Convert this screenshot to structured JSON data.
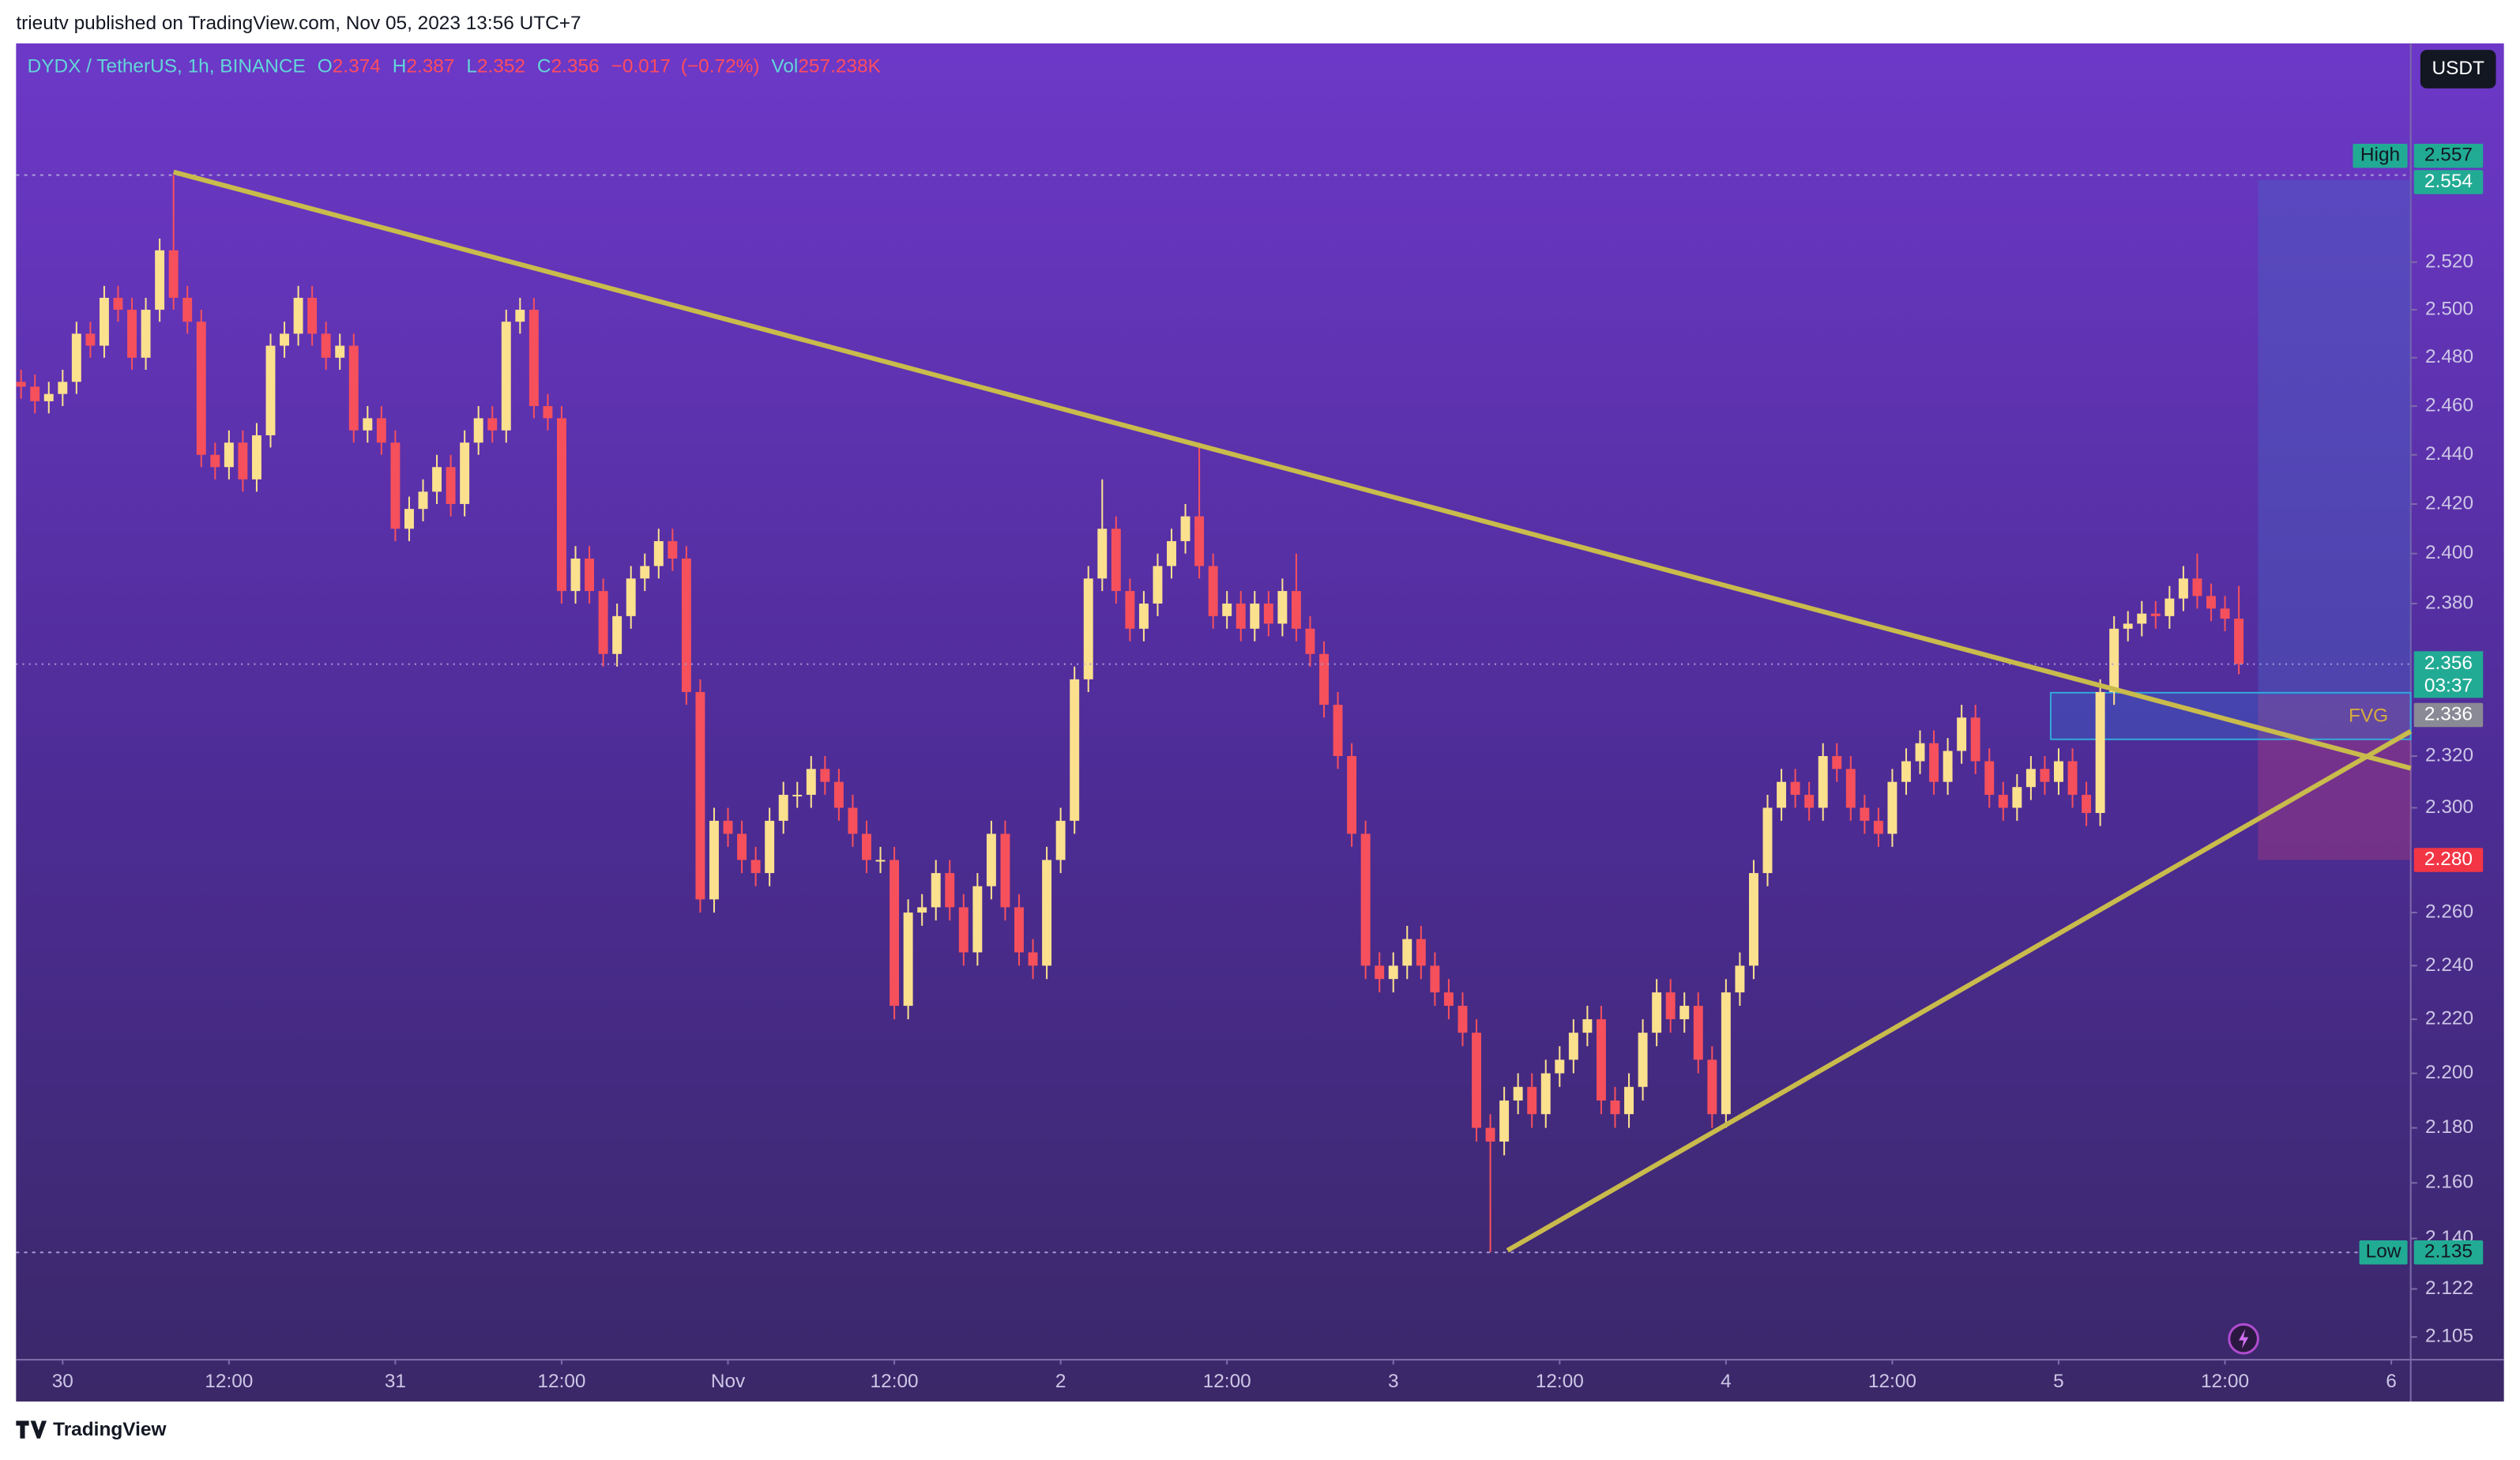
{
  "header": {
    "attribution": "trieutv published on TradingView.com, Nov 05, 2023 13:56 UTC+7"
  },
  "footer": {
    "brand": "TradingView"
  },
  "chart_data": {
    "type": "candlestick",
    "title": "DYDX / TetherUS, 1h, BINANCE",
    "ohlc_legend": {
      "open_prefix": "O",
      "open": 2.374,
      "high_prefix": "H",
      "high": 2.387,
      "low_prefix": "L",
      "low": 2.352,
      "close_prefix": "C",
      "close": 2.356,
      "change": {
        "value": -0.017,
        "label": "−0.017"
      },
      "change_percent": {
        "value": -0.72,
        "label": "(−0.72%)"
      },
      "volume_prefix": "Vol",
      "volume": {
        "value": 257238,
        "label": "257.238K"
      }
    },
    "currency": "USDT",
    "log_scale": true,
    "up_color": "#fbe08e",
    "down_color": "#f5505c",
    "x": [
      -3,
      -2,
      -1,
      0,
      1,
      2,
      3,
      4,
      5,
      6,
      7,
      8,
      9,
      10,
      11,
      12,
      13,
      14,
      15,
      16,
      17,
      18,
      19,
      20,
      21,
      22,
      23,
      24,
      25,
      26,
      27,
      28,
      29,
      30,
      31,
      32,
      33,
      34,
      35,
      36,
      37,
      38,
      39,
      40,
      41,
      42,
      43,
      44,
      45,
      46,
      47,
      48,
      49,
      50,
      51,
      52,
      53,
      54,
      55,
      56,
      57,
      58,
      59,
      60,
      61,
      62,
      63,
      64,
      65,
      66,
      67,
      68,
      69,
      70,
      71,
      72,
      73,
      74,
      75,
      76,
      77,
      78,
      79,
      80,
      81,
      82,
      83,
      84,
      85,
      86,
      87,
      88,
      89,
      90,
      91,
      92,
      93,
      94,
      95,
      96,
      97,
      98,
      99,
      100,
      101,
      102,
      103,
      104,
      105,
      106,
      107,
      108,
      109,
      110,
      111,
      112,
      113,
      114,
      115,
      116,
      117,
      118,
      119,
      120,
      121,
      122,
      123,
      124,
      125,
      126,
      127,
      128,
      129,
      130,
      131,
      132,
      133,
      134,
      135,
      136,
      137,
      138,
      139,
      140,
      141,
      142,
      143,
      144,
      145,
      146,
      147,
      148,
      149,
      150,
      151,
      152,
      153,
      154,
      155,
      156,
      157
    ],
    "open": [
      2.47,
      2.468,
      2.462,
      2.465,
      2.47,
      2.49,
      2.485,
      2.505,
      2.5,
      2.48,
      2.5,
      2.525,
      2.505,
      2.495,
      2.44,
      2.435,
      2.445,
      2.43,
      2.448,
      2.485,
      2.49,
      2.505,
      2.49,
      2.48,
      2.485,
      2.45,
      2.455,
      2.445,
      2.41,
      2.418,
      2.425,
      2.435,
      2.42,
      2.445,
      2.455,
      2.45,
      2.495,
      2.5,
      2.46,
      2.455,
      2.385,
      2.398,
      2.385,
      2.36,
      2.375,
      2.39,
      2.395,
      2.405,
      2.398,
      2.345,
      2.265,
      2.295,
      2.29,
      2.28,
      2.275,
      2.295,
      2.305,
      2.305,
      2.315,
      2.31,
      2.3,
      2.29,
      2.28,
      2.28,
      2.225,
      2.26,
      2.262,
      2.275,
      2.262,
      2.245,
      2.27,
      2.29,
      2.262,
      2.245,
      2.24,
      2.28,
      2.295,
      2.35,
      2.39,
      2.41,
      2.385,
      2.37,
      2.38,
      2.395,
      2.405,
      2.415,
      2.395,
      2.375,
      2.38,
      2.37,
      2.38,
      2.372,
      2.385,
      2.37,
      2.36,
      2.34,
      2.32,
      2.29,
      2.24,
      2.235,
      2.24,
      2.25,
      2.24,
      2.23,
      2.225,
      2.215,
      2.18,
      2.175,
      2.19,
      2.195,
      2.185,
      2.2,
      2.205,
      2.215,
      2.22,
      2.19,
      2.185,
      2.195,
      2.215,
      2.23,
      2.22,
      2.225,
      2.205,
      2.185,
      2.23,
      2.24,
      2.275,
      2.3,
      2.31,
      2.305,
      2.3,
      2.32,
      2.315,
      2.3,
      2.295,
      2.29,
      2.31,
      2.318,
      2.325,
      2.31,
      2.322,
      2.335,
      2.318,
      2.305,
      2.3,
      2.308,
      2.315,
      2.31,
      2.318,
      2.305,
      2.298,
      2.345,
      2.37,
      2.372,
      2.376,
      2.375,
      2.382,
      2.39,
      2.383,
      2.378,
      2.374
    ],
    "high": [
      2.475,
      2.473,
      2.47,
      2.475,
      2.495,
      2.495,
      2.51,
      2.51,
      2.505,
      2.505,
      2.53,
      2.557,
      2.51,
      2.5,
      2.445,
      2.45,
      2.45,
      2.453,
      2.49,
      2.495,
      2.51,
      2.51,
      2.495,
      2.49,
      2.49,
      2.46,
      2.46,
      2.45,
      2.423,
      2.43,
      2.44,
      2.44,
      2.45,
      2.46,
      2.46,
      2.5,
      2.505,
      2.505,
      2.465,
      2.46,
      2.403,
      2.403,
      2.39,
      2.38,
      2.395,
      2.4,
      2.41,
      2.41,
      2.403,
      2.35,
      2.3,
      2.3,
      2.295,
      2.285,
      2.3,
      2.31,
      2.31,
      2.32,
      2.32,
      2.315,
      2.305,
      2.295,
      2.285,
      2.285,
      2.265,
      2.267,
      2.28,
      2.28,
      2.267,
      2.275,
      2.295,
      2.295,
      2.267,
      2.25,
      2.285,
      2.3,
      2.355,
      2.395,
      2.43,
      2.415,
      2.39,
      2.385,
      2.4,
      2.41,
      2.42,
      2.445,
      2.4,
      2.385,
      2.385,
      2.385,
      2.385,
      2.39,
      2.4,
      2.375,
      2.365,
      2.345,
      2.325,
      2.295,
      2.245,
      2.245,
      2.255,
      2.255,
      2.245,
      2.235,
      2.23,
      2.22,
      2.185,
      2.195,
      2.2,
      2.2,
      2.205,
      2.21,
      2.22,
      2.225,
      2.225,
      2.195,
      2.2,
      2.22,
      2.235,
      2.235,
      2.23,
      2.23,
      2.21,
      2.235,
      2.245,
      2.28,
      2.305,
      2.315,
      2.315,
      2.31,
      2.325,
      2.325,
      2.32,
      2.305,
      2.3,
      2.315,
      2.323,
      2.33,
      2.33,
      2.327,
      2.34,
      2.34,
      2.323,
      2.31,
      2.313,
      2.32,
      2.32,
      2.323,
      2.323,
      2.31,
      2.35,
      2.375,
      2.377,
      2.381,
      2.381,
      2.387,
      2.395,
      2.4,
      2.388,
      2.383,
      2.387
    ],
    "low": [
      2.463,
      2.457,
      2.457,
      2.46,
      2.465,
      2.48,
      2.48,
      2.495,
      2.475,
      2.475,
      2.495,
      2.5,
      2.49,
      2.435,
      2.43,
      2.43,
      2.425,
      2.425,
      2.443,
      2.48,
      2.485,
      2.485,
      2.475,
      2.475,
      2.445,
      2.445,
      2.44,
      2.405,
      2.405,
      2.413,
      2.42,
      2.415,
      2.415,
      2.44,
      2.445,
      2.445,
      2.49,
      2.455,
      2.45,
      2.38,
      2.38,
      2.38,
      2.355,
      2.355,
      2.37,
      2.385,
      2.39,
      2.393,
      2.34,
      2.26,
      2.26,
      2.285,
      2.275,
      2.27,
      2.27,
      2.29,
      2.3,
      2.3,
      2.305,
      2.295,
      2.285,
      2.275,
      2.275,
      2.22,
      2.22,
      2.255,
      2.257,
      2.257,
      2.24,
      2.24,
      2.265,
      2.257,
      2.24,
      2.235,
      2.235,
      2.275,
      2.29,
      2.345,
      2.385,
      2.38,
      2.365,
      2.365,
      2.375,
      2.39,
      2.4,
      2.39,
      2.37,
      2.37,
      2.365,
      2.365,
      2.367,
      2.367,
      2.365,
      2.355,
      2.335,
      2.315,
      2.285,
      2.235,
      2.23,
      2.23,
      2.235,
      2.235,
      2.225,
      2.22,
      2.21,
      2.175,
      2.135,
      2.17,
      2.185,
      2.18,
      2.18,
      2.195,
      2.2,
      2.21,
      2.185,
      2.18,
      2.18,
      2.19,
      2.21,
      2.215,
      2.215,
      2.2,
      2.18,
      2.18,
      2.225,
      2.235,
      2.27,
      2.295,
      2.3,
      2.295,
      2.295,
      2.31,
      2.295,
      2.29,
      2.285,
      2.285,
      2.305,
      2.313,
      2.305,
      2.305,
      2.317,
      2.313,
      2.3,
      2.295,
      2.295,
      2.303,
      2.305,
      2.305,
      2.3,
      2.293,
      2.293,
      2.34,
      2.365,
      2.367,
      2.37,
      2.37,
      2.377,
      2.378,
      2.373,
      2.369,
      2.352
    ],
    "close": [
      2.468,
      2.462,
      2.465,
      2.47,
      2.49,
      2.485,
      2.505,
      2.5,
      2.48,
      2.5,
      2.525,
      2.505,
      2.495,
      2.44,
      2.435,
      2.445,
      2.43,
      2.448,
      2.485,
      2.49,
      2.505,
      2.49,
      2.48,
      2.485,
      2.45,
      2.455,
      2.445,
      2.41,
      2.418,
      2.425,
      2.435,
      2.42,
      2.445,
      2.455,
      2.45,
      2.495,
      2.5,
      2.46,
      2.455,
      2.385,
      2.398,
      2.385,
      2.36,
      2.375,
      2.39,
      2.395,
      2.405,
      2.398,
      2.345,
      2.265,
      2.295,
      2.29,
      2.28,
      2.275,
      2.295,
      2.305,
      2.305,
      2.315,
      2.31,
      2.3,
      2.29,
      2.28,
      2.28,
      2.225,
      2.26,
      2.262,
      2.275,
      2.262,
      2.245,
      2.27,
      2.29,
      2.262,
      2.245,
      2.24,
      2.28,
      2.295,
      2.35,
      2.39,
      2.41,
      2.385,
      2.37,
      2.38,
      2.395,
      2.405,
      2.415,
      2.395,
      2.375,
      2.38,
      2.37,
      2.38,
      2.372,
      2.385,
      2.37,
      2.36,
      2.34,
      2.32,
      2.29,
      2.24,
      2.235,
      2.24,
      2.25,
      2.24,
      2.23,
      2.225,
      2.215,
      2.18,
      2.175,
      2.19,
      2.195,
      2.185,
      2.2,
      2.205,
      2.215,
      2.22,
      2.19,
      2.185,
      2.195,
      2.215,
      2.23,
      2.22,
      2.225,
      2.205,
      2.185,
      2.23,
      2.24,
      2.275,
      2.3,
      2.31,
      2.305,
      2.3,
      2.32,
      2.315,
      2.3,
      2.295,
      2.29,
      2.31,
      2.318,
      2.325,
      2.31,
      2.322,
      2.335,
      2.318,
      2.305,
      2.3,
      2.308,
      2.315,
      2.31,
      2.318,
      2.305,
      2.298,
      2.345,
      2.37,
      2.372,
      2.376,
      2.375,
      2.382,
      2.39,
      2.383,
      2.378,
      2.374,
      2.356
    ],
    "xlim": [
      -3.36,
      169.4
    ],
    "xticks": [
      {
        "value": 0,
        "label": "30"
      },
      {
        "value": 12,
        "label": "12:00"
      },
      {
        "value": 24,
        "label": "31"
      },
      {
        "value": 36,
        "label": "12:00"
      },
      {
        "value": 48,
        "label": "Nov"
      },
      {
        "value": 60,
        "label": "12:00"
      },
      {
        "value": 72,
        "label": "2"
      },
      {
        "value": 84,
        "label": "12:00"
      },
      {
        "value": 96,
        "label": "3"
      },
      {
        "value": 108,
        "label": "12:00"
      },
      {
        "value": 120,
        "label": "4"
      },
      {
        "value": 132,
        "label": "12:00"
      },
      {
        "value": 144,
        "label": "5"
      },
      {
        "value": 156,
        "label": "12:00"
      },
      {
        "value": 168,
        "label": "6"
      }
    ],
    "ylim": [
      2.097,
      2.614
    ],
    "yticks": [
      2.105,
      2.122,
      {
        "value": 2.14,
        "label": "2.140"
      },
      {
        "value": 2.16,
        "label": "2.160"
      },
      {
        "value": 2.18,
        "label": "2.180"
      },
      {
        "value": 2.2,
        "label": "2.200"
      },
      {
        "value": 2.22,
        "label": "2.220"
      },
      {
        "value": 2.24,
        "label": "2.240"
      },
      {
        "value": 2.26,
        "label": "2.260"
      },
      {
        "value": 2.3,
        "label": "2.300"
      },
      {
        "value": 2.32,
        "label": "2.320"
      },
      {
        "value": 2.38,
        "label": "2.380"
      },
      {
        "value": 2.4,
        "label": "2.400"
      },
      {
        "value": 2.42,
        "label": "2.420"
      },
      {
        "value": 2.44,
        "label": "2.440"
      },
      {
        "value": 2.46,
        "label": "2.460"
      },
      {
        "value": 2.48,
        "label": "2.480"
      },
      {
        "value": 2.5,
        "label": "2.500"
      },
      {
        "value": 2.52,
        "label": "2.520"
      }
    ],
    "price_labels": {
      "session_high": {
        "tag": "High",
        "value": 2.557
      },
      "target": 2.554,
      "last": {
        "value": 2.356,
        "countdown": "03:37"
      },
      "fvg": {
        "tag": "FVG",
        "value": 2.336
      },
      "stop": {
        "value": 2.28,
        "label": "2.280"
      },
      "session_low": {
        "tag": "Low",
        "value": 2.135
      }
    }
  }
}
